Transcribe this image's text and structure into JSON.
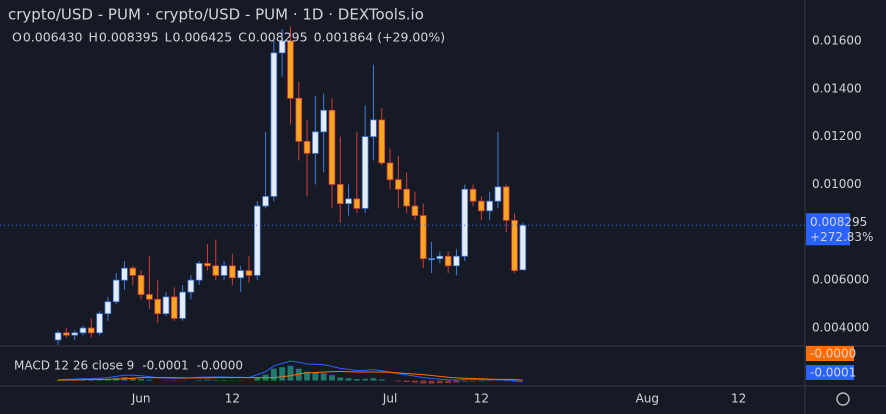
{
  "chart_data": {
    "type": "candlestick",
    "title": "crypto/USD - PUM · crypto/USD - PUM · 1D · DEXTools.io",
    "ohlc_legend": [
      {
        "key": "O",
        "text": "0.006430"
      },
      {
        "key": "H",
        "text": "0.008395"
      },
      {
        "key": "L",
        "text": "0.006425"
      },
      {
        "key": "C",
        "text": "0.008295"
      }
    ],
    "change_text": "0.001864 (+29.00%)",
    "x": [
      "05-22",
      "05-23",
      "05-24",
      "05-25",
      "05-26",
      "05-27",
      "05-28",
      "05-29",
      "05-30",
      "05-31",
      "06-01",
      "06-02",
      "06-03",
      "06-04",
      "06-05",
      "06-06",
      "06-07",
      "06-08",
      "06-09",
      "06-10",
      "06-11",
      "06-12",
      "06-13",
      "06-14",
      "06-15",
      "06-16",
      "06-17",
      "06-18",
      "06-19",
      "06-20",
      "06-21",
      "06-22",
      "06-23",
      "06-24",
      "06-25",
      "06-26",
      "06-27",
      "06-28",
      "06-29",
      "06-30",
      "07-01",
      "07-02",
      "07-03",
      "07-04",
      "07-05",
      "07-06",
      "07-07",
      "07-08",
      "07-09",
      "07-10",
      "07-11",
      "07-12",
      "07-13",
      "07-14",
      "07-15",
      "07-16",
      "07-17"
    ],
    "open": [
      0.0035,
      0.0038,
      0.0037,
      0.0038,
      0.004,
      0.0038,
      0.0046,
      0.0051,
      0.006,
      0.0065,
      0.0062,
      0.0054,
      0.0052,
      0.0046,
      0.0053,
      0.0044,
      0.0055,
      0.006,
      0.0067,
      0.0066,
      0.0062,
      0.0066,
      0.0061,
      0.0064,
      0.0062,
      0.0091,
      0.0095,
      0.0155,
      0.016,
      0.0136,
      0.0118,
      0.0113,
      0.0122,
      0.0131,
      0.01,
      0.0092,
      0.0094,
      0.009,
      0.012,
      0.0127,
      0.0109,
      0.0102,
      0.0098,
      0.0091,
      0.0087,
      0.0069,
      0.0069,
      0.007,
      0.0066,
      0.007,
      0.0098,
      0.0093,
      0.0089,
      0.0093,
      0.0099,
      0.0085,
      0.00643
    ],
    "high": [
      0.0039,
      0.004,
      0.0039,
      0.0041,
      0.0044,
      0.0047,
      0.0053,
      0.0063,
      0.0068,
      0.0066,
      0.0064,
      0.007,
      0.006,
      0.0055,
      0.0057,
      0.0058,
      0.0062,
      0.0068,
      0.0075,
      0.0077,
      0.0068,
      0.0071,
      0.0066,
      0.007,
      0.0093,
      0.0122,
      0.016,
      0.0165,
      0.0166,
      0.0143,
      0.0127,
      0.0137,
      0.0138,
      0.0136,
      0.012,
      0.01,
      0.0122,
      0.0133,
      0.015,
      0.0132,
      0.0115,
      0.0112,
      0.0105,
      0.0097,
      0.0092,
      0.0076,
      0.0072,
      0.0072,
      0.0073,
      0.01,
      0.01,
      0.0095,
      0.0097,
      0.0122,
      0.01,
      0.0088,
      0.008395
    ],
    "low": [
      0.0033,
      0.0036,
      0.0035,
      0.0037,
      0.0036,
      0.0037,
      0.0043,
      0.005,
      0.0056,
      0.0058,
      0.0052,
      0.0048,
      0.0042,
      0.0045,
      0.0043,
      0.0043,
      0.0052,
      0.0058,
      0.0064,
      0.006,
      0.006,
      0.0058,
      0.0055,
      0.0059,
      0.006,
      0.009,
      0.0093,
      0.0145,
      0.0125,
      0.011,
      0.0095,
      0.01,
      0.0105,
      0.009,
      0.0084,
      0.0087,
      0.0088,
      0.0088,
      0.011,
      0.0108,
      0.0098,
      0.009,
      0.0088,
      0.0085,
      0.0065,
      0.0063,
      0.0067,
      0.0063,
      0.0062,
      0.0068,
      0.0091,
      0.0085,
      0.0085,
      0.009,
      0.008,
      0.0063,
      0.006425
    ],
    "close": [
      0.0038,
      0.0037,
      0.0038,
      0.004,
      0.0038,
      0.0046,
      0.0051,
      0.006,
      0.0065,
      0.0062,
      0.0054,
      0.0052,
      0.0046,
      0.0053,
      0.0044,
      0.0055,
      0.006,
      0.0067,
      0.0066,
      0.0062,
      0.0066,
      0.0061,
      0.0064,
      0.0062,
      0.0091,
      0.0095,
      0.0155,
      0.016,
      0.0136,
      0.0118,
      0.0113,
      0.0122,
      0.0131,
      0.01,
      0.0092,
      0.0094,
      0.009,
      0.012,
      0.0127,
      0.0109,
      0.0102,
      0.0098,
      0.0091,
      0.0087,
      0.0069,
      0.0069,
      0.007,
      0.0066,
      0.007,
      0.0098,
      0.0093,
      0.0089,
      0.0093,
      0.0099,
      0.0085,
      0.0064,
      0.008295
    ],
    "colors": {
      "up_body": "#e6ecf7",
      "up_wick": "#3d7be0",
      "down_body": "#f6a623",
      "down_wick": "#d23b3b",
      "last_price": "#2962ff"
    },
    "xlim": [
      "05-15",
      "08-20"
    ],
    "xticks": [
      {
        "value": "06-01",
        "label": "Jun"
      },
      {
        "value": "06-12",
        "label": "12"
      },
      {
        "value": "07-01",
        "label": "Jul"
      },
      {
        "value": "07-12",
        "label": "12"
      },
      {
        "value": "08-01",
        "label": "Aug"
      },
      {
        "value": "08-12",
        "label": "12"
      }
    ],
    "ylim": [
      0.00329,
      0.01771
    ],
    "yticks": [
      {
        "value": 0.004,
        "label": "0.004000"
      },
      {
        "value": 0.006,
        "label": "0.006000"
      },
      {
        "value": 0.01,
        "label": "0.01000"
      },
      {
        "value": 0.012,
        "label": "0.01200"
      },
      {
        "value": 0.014,
        "label": "0.01400"
      },
      {
        "value": 0.016,
        "label": "0.01600"
      }
    ],
    "last_price_label": "0.008295",
    "last_change_label": "+272.83%",
    "macd": {
      "label": "MACD 12 26 close 9",
      "macd_text": "-0.0001",
      "signal_text": "-0.0000",
      "axis_signal_label": "-0.0000",
      "axis_macd_label": "-0.0001",
      "ylim": [
        -0.00015,
        0.0011
      ],
      "histogram": [
        2e-05,
        2e-05,
        3e-05,
        3e-05,
        2e-05,
        4e-05,
        6e-05,
        9e-05,
        0.00012,
        0.0001,
        6e-05,
        3e-05,
        0,
        -1e-05,
        -2e-05,
        -1e-05,
        0,
        2e-05,
        3e-05,
        2e-05,
        2e-05,
        1e-05,
        1e-05,
        0,
        0.0001,
        0.0002,
        0.0004,
        0.00045,
        0.0005,
        0.0004,
        0.0003,
        0.00028,
        0.00025,
        0.00018,
        0.0001,
        8e-05,
        5e-05,
        6e-05,
        8e-05,
        4e-05,
        0,
        -3e-05,
        -5e-05,
        -7e-05,
        -0.0001,
        -0.0001,
        -9e-05,
        -8e-05,
        -7e-05,
        -4e-05,
        -3e-05,
        -3e-05,
        -2e-05,
        -1e-05,
        -2e-05,
        -4e-05,
        0
      ],
      "macd_line": [
        3e-05,
        4e-05,
        5e-05,
        6e-05,
        6e-05,
        8e-05,
        0.0001,
        0.00014,
        0.00018,
        0.00018,
        0.00016,
        0.00013,
        0.0001,
        9e-05,
        8e-05,
        8e-05,
        9e-05,
        0.00011,
        0.00012,
        0.00012,
        0.00012,
        0.00011,
        0.00011,
        0.0001,
        0.0002,
        0.0003,
        0.0005,
        0.00058,
        0.00066,
        0.00062,
        0.00056,
        0.00055,
        0.00054,
        0.00048,
        0.00041,
        0.00038,
        0.00034,
        0.00035,
        0.00037,
        0.00033,
        0.00028,
        0.00023,
        0.00019,
        0.00015,
        0.0001,
        7e-05,
        5e-05,
        3e-05,
        2e-05,
        4e-05,
        4e-05,
        3e-05,
        3e-05,
        3e-05,
        2e-05,
        0,
        -5e-05
      ],
      "signal_line": [
        1e-05,
        2e-05,
        2e-05,
        3e-05,
        4e-05,
        4e-05,
        4e-05,
        5e-05,
        6e-05,
        8e-05,
        0.0001,
        0.0001,
        0.0001,
        0.0001,
        0.0001,
        9e-05,
        9e-05,
        9e-05,
        9e-05,
        0.0001,
        0.0001,
        0.0001,
        0.0001,
        0.0001,
        0.0001,
        0.0001,
        0.0001,
        0.00013,
        0.00016,
        0.00022,
        0.00026,
        0.00027,
        0.00029,
        0.0003,
        0.00031,
        0.0003,
        0.00029,
        0.00029,
        0.00029,
        0.00029,
        0.00028,
        0.00026,
        0.00024,
        0.00022,
        0.0002,
        0.00017,
        0.00014,
        0.00011,
        9e-05,
        8e-05,
        7e-05,
        6e-05,
        5e-05,
        4e-05,
        4e-05,
        4e-05,
        1e-05
      ],
      "colors": {
        "hist_pos": "#1f7a6d",
        "hist_neg": "#8f3434",
        "macd": "#2962ff",
        "signal": "#ff6d00"
      }
    }
  }
}
